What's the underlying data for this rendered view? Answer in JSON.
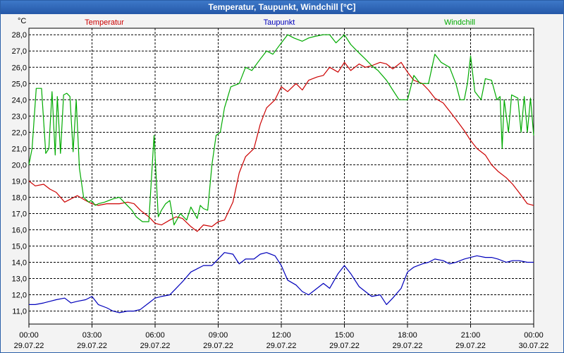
{
  "window": {
    "title": "Temperatur, Taupunkt, Windchill [°C]"
  },
  "chart_data": {
    "type": "line",
    "title": "Temperatur, Taupunkt, Windchill [°C]",
    "ylabel": "°C",
    "xlabel": "",
    "ylim": [
      10.2,
      28.4
    ],
    "yticks": [
      "11,0",
      "12,0",
      "13,0",
      "14,0",
      "15,0",
      "16,0",
      "17,0",
      "18,0",
      "19,0",
      "20,0",
      "21,0",
      "22,0",
      "23,0",
      "24,0",
      "25,0",
      "26,0",
      "27,0",
      "28,0"
    ],
    "xlim": [
      0,
      24
    ],
    "xticks": [
      {
        "time": "00:00",
        "date": "29.07.22"
      },
      {
        "time": "03:00",
        "date": "29.07.22"
      },
      {
        "time": "06:00",
        "date": "29.07.22"
      },
      {
        "time": "09:00",
        "date": "29.07.22"
      },
      {
        "time": "12:00",
        "date": "29.07.22"
      },
      {
        "time": "15:00",
        "date": "29.07.22"
      },
      {
        "time": "18:00",
        "date": "29.07.22"
      },
      {
        "time": "21:00",
        "date": "29.07.22"
      },
      {
        "time": "00:00",
        "date": "30.07.22"
      }
    ],
    "grid": true,
    "series": [
      {
        "name": "Temperatur",
        "color": "#cc0000",
        "x": [
          0,
          0.3,
          0.7,
          1.0,
          1.3,
          1.7,
          2.0,
          2.3,
          2.7,
          3.0,
          3.3,
          3.7,
          4.0,
          4.3,
          4.7,
          5.0,
          5.3,
          5.7,
          6.0,
          6.3,
          6.7,
          7.0,
          7.3,
          7.7,
          8.0,
          8.3,
          8.7,
          9.0,
          9.3,
          9.7,
          10.0,
          10.3,
          10.7,
          11.0,
          11.3,
          11.7,
          12.0,
          12.3,
          12.7,
          13.0,
          13.3,
          13.7,
          14.0,
          14.3,
          14.7,
          15.0,
          15.3,
          15.7,
          16.0,
          16.3,
          16.7,
          17.0,
          17.3,
          17.7,
          18.0,
          18.3,
          18.7,
          19.0,
          19.3,
          19.7,
          20.0,
          20.3,
          20.7,
          21.0,
          21.3,
          21.7,
          22.0,
          22.3,
          22.7,
          23.0,
          23.3,
          23.7,
          24.0
        ],
        "values": [
          19.0,
          18.7,
          18.8,
          18.5,
          18.3,
          17.7,
          17.9,
          18.1,
          17.8,
          17.6,
          17.5,
          17.6,
          17.6,
          17.6,
          17.7,
          17.6,
          17.2,
          16.8,
          16.4,
          16.3,
          16.6,
          16.8,
          16.7,
          16.2,
          15.9,
          16.3,
          16.2,
          16.5,
          16.6,
          17.7,
          19.5,
          20.5,
          21.0,
          22.5,
          23.5,
          24.0,
          24.8,
          24.5,
          25.0,
          24.6,
          25.2,
          25.4,
          25.5,
          26.0,
          25.7,
          26.3,
          25.8,
          26.2,
          26.0,
          26.1,
          26.3,
          26.2,
          25.9,
          26.3,
          25.7,
          25.2,
          25.0,
          24.6,
          24.1,
          23.8,
          23.3,
          22.8,
          22.1,
          21.5,
          21.0,
          20.6,
          20.0,
          19.6,
          19.2,
          18.8,
          18.3,
          17.6,
          17.5
        ]
      },
      {
        "name": "Taupunkt",
        "color": "#0000bb",
        "x": [
          0,
          0.3,
          0.7,
          1.0,
          1.3,
          1.7,
          2.0,
          2.3,
          2.7,
          3.0,
          3.3,
          3.7,
          4.0,
          4.3,
          4.7,
          5.0,
          5.3,
          5.7,
          6.0,
          6.3,
          6.7,
          7.0,
          7.3,
          7.7,
          8.0,
          8.3,
          8.7,
          9.0,
          9.3,
          9.7,
          10.0,
          10.3,
          10.7,
          11.0,
          11.3,
          11.7,
          12.0,
          12.3,
          12.7,
          13.0,
          13.3,
          13.7,
          14.0,
          14.3,
          14.7,
          15.0,
          15.3,
          15.7,
          16.0,
          16.3,
          16.7,
          17.0,
          17.3,
          17.7,
          18.0,
          18.3,
          18.7,
          19.0,
          19.3,
          19.7,
          20.0,
          20.3,
          20.7,
          21.0,
          21.3,
          21.7,
          22.0,
          22.3,
          22.7,
          23.0,
          23.3,
          23.7,
          24.0
        ],
        "values": [
          11.4,
          11.4,
          11.5,
          11.6,
          11.7,
          11.8,
          11.5,
          11.6,
          11.7,
          11.9,
          11.4,
          11.2,
          11.0,
          10.9,
          11.0,
          11.0,
          11.1,
          11.5,
          11.8,
          11.9,
          12.0,
          12.4,
          12.8,
          13.4,
          13.6,
          13.8,
          13.8,
          14.2,
          14.6,
          14.5,
          13.9,
          14.2,
          14.2,
          14.5,
          14.6,
          14.4,
          13.8,
          12.9,
          12.6,
          12.2,
          12.0,
          12.4,
          12.7,
          12.4,
          13.3,
          13.8,
          13.3,
          12.5,
          12.2,
          11.9,
          12.0,
          11.4,
          11.8,
          12.4,
          13.4,
          13.7,
          13.9,
          14.0,
          14.2,
          14.1,
          13.9,
          14.0,
          14.2,
          14.3,
          14.4,
          14.3,
          14.3,
          14.2,
          14.0,
          14.1,
          14.1,
          14.0,
          14.0
        ]
      },
      {
        "name": "Windchill",
        "color": "#00aa00",
        "x": [
          0,
          0.15,
          0.35,
          0.6,
          0.8,
          0.95,
          1.1,
          1.25,
          1.35,
          1.5,
          1.65,
          1.8,
          1.95,
          2.1,
          2.25,
          2.4,
          2.6,
          2.85,
          2.95,
          3.05,
          3.15,
          3.3,
          3.6,
          4.0,
          4.3,
          4.6,
          4.9,
          5.1,
          5.4,
          5.7,
          5.95,
          6.15,
          6.3,
          6.5,
          6.7,
          6.9,
          7.2,
          7.5,
          7.7,
          8.0,
          8.15,
          8.3,
          8.5,
          8.7,
          8.9,
          9.1,
          9.3,
          9.6,
          10.0,
          10.3,
          10.6,
          11.0,
          11.3,
          11.6,
          12.0,
          12.3,
          12.6,
          13.0,
          13.3,
          13.6,
          14.0,
          14.3,
          14.6,
          15.0,
          15.3,
          15.6,
          16.0,
          16.3,
          16.6,
          17.0,
          17.3,
          17.6,
          18.0,
          18.3,
          18.6,
          19.0,
          19.3,
          19.6,
          20.0,
          20.3,
          20.5,
          20.7,
          20.85,
          21.0,
          21.2,
          21.5,
          21.7,
          22.0,
          22.25,
          22.4,
          22.5,
          22.6,
          22.8,
          22.95,
          23.1,
          23.25,
          23.4,
          23.55,
          23.7,
          23.85,
          24.0
        ],
        "values": [
          20.0,
          21.0,
          24.7,
          24.7,
          20.7,
          21.0,
          24.5,
          20.6,
          24.2,
          20.7,
          24.3,
          24.4,
          24.2,
          20.8,
          24.0,
          19.8,
          18.0,
          17.7,
          17.8,
          17.7,
          17.5,
          17.6,
          17.7,
          17.9,
          18.0,
          17.6,
          17.2,
          16.8,
          16.5,
          16.5,
          21.8,
          16.8,
          17.2,
          17.6,
          17.8,
          16.3,
          17.0,
          16.6,
          17.4,
          16.7,
          17.5,
          17.3,
          17.2,
          20.0,
          21.8,
          22.0,
          23.5,
          24.8,
          25.0,
          26.0,
          25.8,
          26.5,
          27.0,
          26.8,
          27.5,
          28.0,
          27.8,
          27.6,
          27.8,
          27.9,
          28.0,
          28.0,
          27.5,
          28.0,
          27.4,
          27.0,
          26.5,
          26.1,
          25.8,
          25.2,
          24.6,
          24.0,
          24.0,
          25.5,
          25.0,
          25.0,
          26.8,
          26.3,
          26.0,
          25.0,
          24.0,
          24.0,
          25.0,
          26.7,
          24.5,
          24.0,
          25.3,
          25.2,
          24.0,
          24.2,
          21.0,
          24.0,
          22.0,
          24.3,
          24.2,
          24.1,
          22.0,
          24.2,
          22.0,
          24.1,
          21.8
        ]
      }
    ]
  }
}
